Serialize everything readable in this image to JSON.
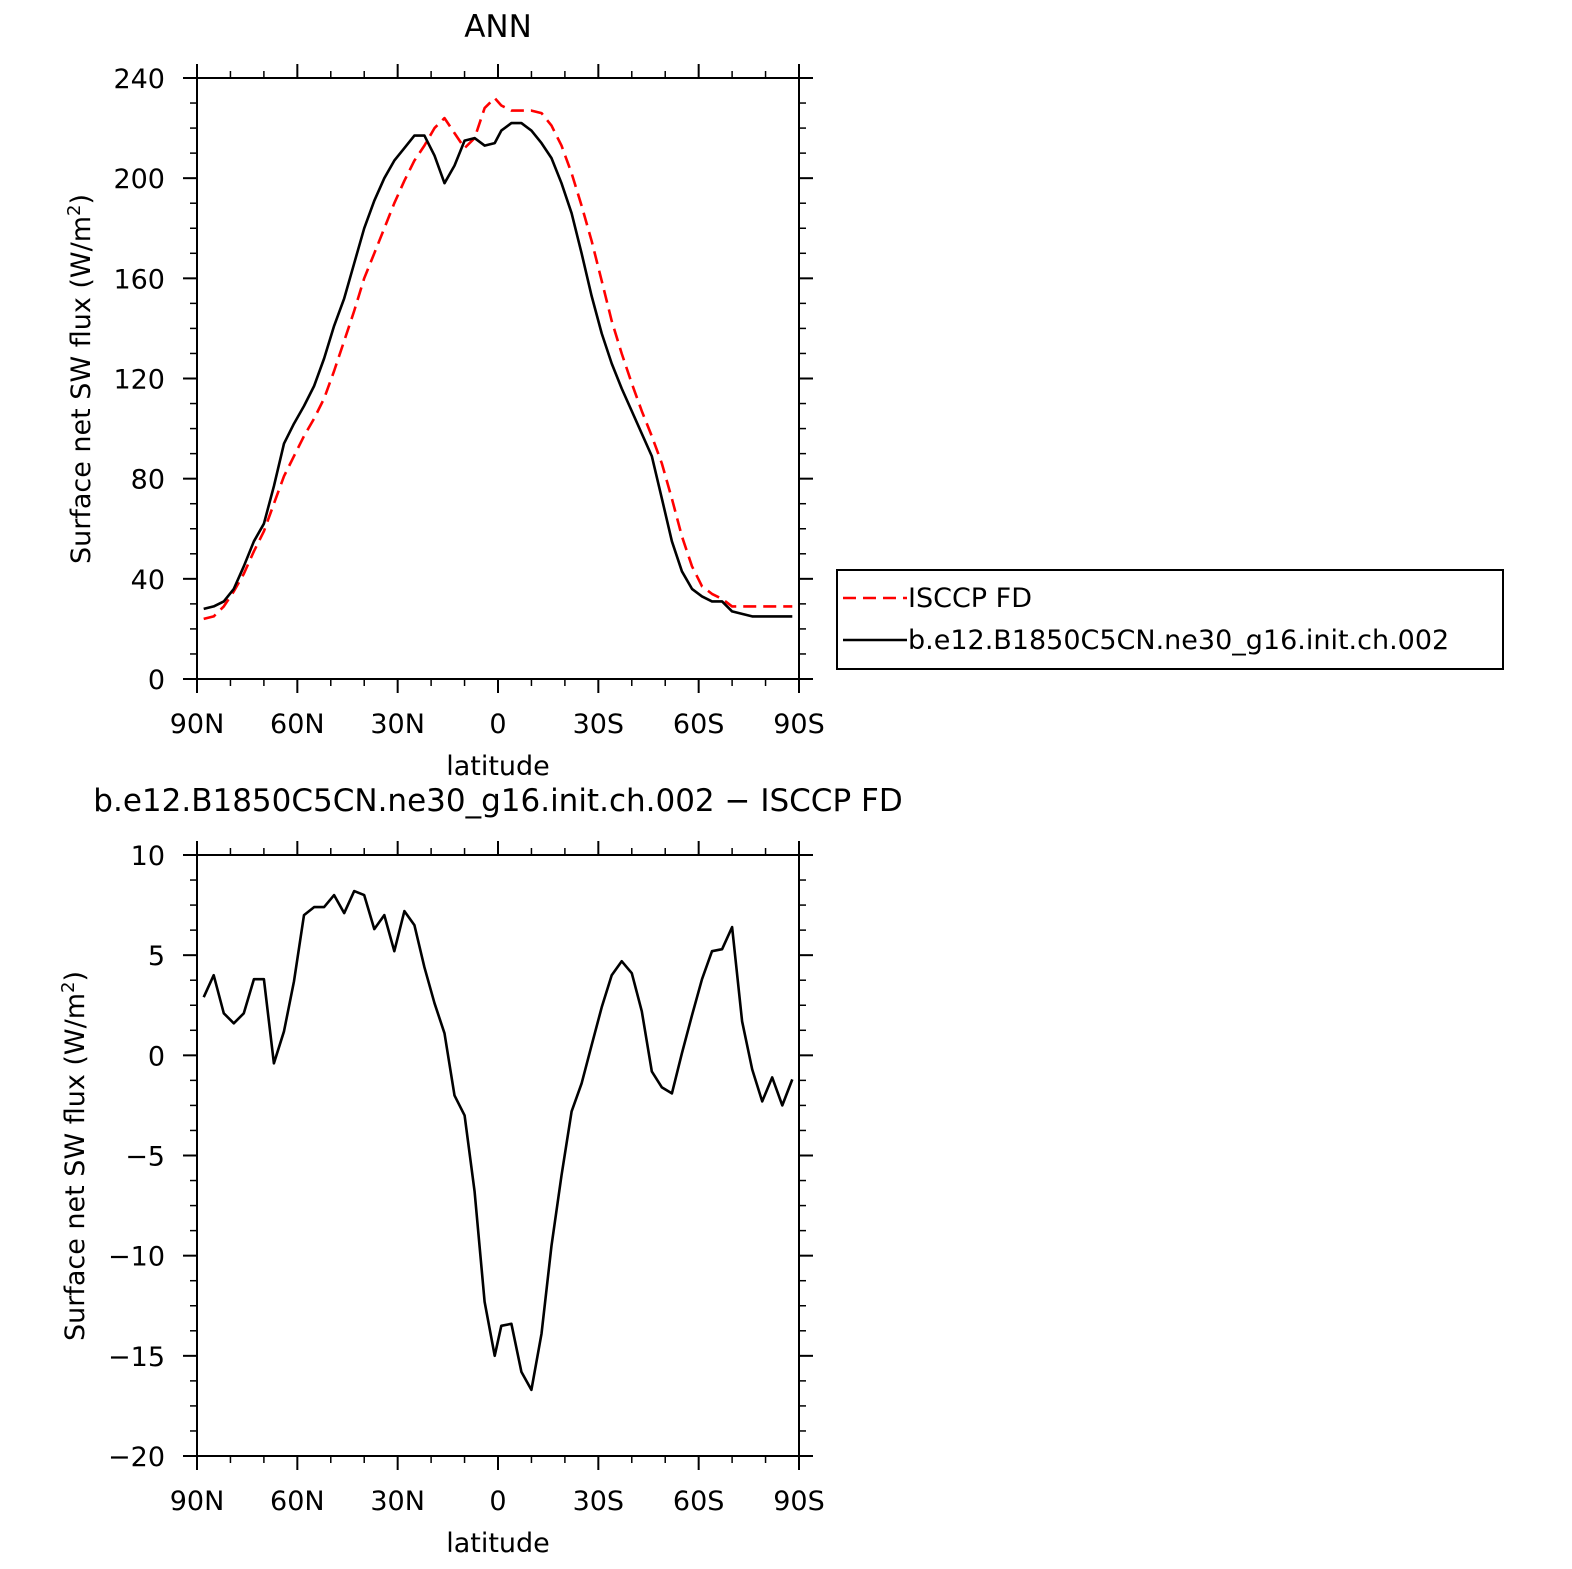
{
  "chart_data": [
    {
      "type": "line",
      "title": "ANN",
      "xlabel": "latitude",
      "ylabel_main": "Surface net SW flux (W/m",
      "ylabel_sup": "2",
      "ylabel_close": ")",
      "xticks": [
        {
          "value": 90,
          "label": "90N"
        },
        {
          "value": 60,
          "label": "60N"
        },
        {
          "value": 30,
          "label": "30N"
        },
        {
          "value": 0,
          "label": "0"
        },
        {
          "value": -30,
          "label": "30S"
        },
        {
          "value": -60,
          "label": "60S"
        },
        {
          "value": -90,
          "label": "90S"
        }
      ],
      "yticks": [
        {
          "value": 0,
          "label": "0"
        },
        {
          "value": 40,
          "label": "40"
        },
        {
          "value": 80,
          "label": "80"
        },
        {
          "value": 120,
          "label": "120"
        },
        {
          "value": 160,
          "label": "160"
        },
        {
          "value": 200,
          "label": "200"
        },
        {
          "value": 240,
          "label": "240"
        }
      ],
      "xlim": [
        90,
        -90
      ],
      "ylim": [
        0,
        240
      ],
      "series": [
        {
          "name": "ISCCP FD",
          "color": "#ff0000",
          "dash": "dashed",
          "x": [
            88,
            85,
            82,
            79,
            76,
            73,
            70,
            67,
            64,
            61,
            58,
            55,
            52,
            49,
            46,
            43,
            40,
            37,
            34,
            31,
            28,
            25,
            22,
            19,
            16,
            13,
            10,
            7,
            4,
            1,
            -1,
            -4,
            -7,
            -10,
            -13,
            -16,
            -19,
            -22,
            -25,
            -28,
            -31,
            -34,
            -37,
            -40,
            -43,
            -46,
            -49,
            -52,
            -55,
            -58,
            -61,
            -64,
            -67,
            -70,
            -73,
            -76,
            -79,
            -82,
            -85,
            -88
          ],
          "y": [
            24,
            25,
            29,
            35,
            42,
            51,
            59,
            70,
            81,
            89,
            97,
            104,
            112,
            123,
            135,
            147,
            160,
            170,
            180,
            190,
            199,
            207,
            213,
            220,
            224,
            218,
            212,
            216,
            228,
            232,
            229,
            227,
            227,
            227,
            226,
            221,
            213,
            202,
            189,
            175,
            159,
            143,
            130,
            118,
            107,
            97,
            86,
            72,
            57,
            45,
            37,
            34,
            32,
            29,
            29,
            29,
            29,
            29,
            29,
            29
          ]
        },
        {
          "name": "b.e12.B1850C5CN.ne30_g16.init.ch.002",
          "color": "#000000",
          "dash": "solid",
          "x": [
            88,
            85,
            82,
            79,
            76,
            73,
            70,
            67,
            64,
            61,
            58,
            55,
            52,
            49,
            46,
            43,
            40,
            37,
            34,
            31,
            28,
            25,
            22,
            19,
            16,
            13,
            10,
            7,
            4,
            1,
            -1,
            -4,
            -7,
            -10,
            -13,
            -16,
            -19,
            -22,
            -25,
            -28,
            -31,
            -34,
            -37,
            -40,
            -43,
            -46,
            -49,
            -52,
            -55,
            -58,
            -61,
            -64,
            -67,
            -70,
            -73,
            -76,
            -79,
            -82,
            -85,
            -88
          ],
          "y": [
            28,
            29,
            31,
            36,
            45,
            55,
            62,
            77,
            94,
            102,
            109,
            117,
            128,
            141,
            152,
            166,
            180,
            191,
            200,
            207,
            212,
            217,
            217,
            209,
            198,
            205,
            215,
            216,
            213,
            214,
            219,
            222,
            222,
            219,
            214,
            208,
            198,
            186,
            170,
            153,
            138,
            126,
            116,
            107,
            98,
            89,
            72,
            55,
            43,
            36,
            33,
            31,
            31,
            27,
            26,
            25,
            25,
            25,
            25,
            25
          ]
        }
      ],
      "legend": {
        "placement": "right",
        "entries": [
          "ISCCP FD",
          "b.e12.B1850C5CN.ne30_g16.init.ch.002"
        ]
      }
    },
    {
      "type": "line",
      "title": "b.e12.B1850C5CN.ne30_g16.init.ch.002 − ISCCP FD",
      "xlabel": "latitude",
      "ylabel_main": "Surface net SW flux (W/m",
      "ylabel_sup": "2",
      "ylabel_close": ")",
      "xticks": [
        {
          "value": 90,
          "label": "90N"
        },
        {
          "value": 60,
          "label": "60N"
        },
        {
          "value": 30,
          "label": "30N"
        },
        {
          "value": 0,
          "label": "0"
        },
        {
          "value": -30,
          "label": "30S"
        },
        {
          "value": -60,
          "label": "60S"
        },
        {
          "value": -90,
          "label": "90S"
        }
      ],
      "yticks": [
        {
          "value": -20,
          "label": "−20"
        },
        {
          "value": -15,
          "label": "−15"
        },
        {
          "value": -10,
          "label": "−10"
        },
        {
          "value": -5,
          "label": "−5"
        },
        {
          "value": 0,
          "label": "0"
        },
        {
          "value": 5,
          "label": "5"
        },
        {
          "value": 10,
          "label": "10"
        }
      ],
      "xlim": [
        90,
        -90
      ],
      "ylim": [
        -20,
        10
      ],
      "series": [
        {
          "color": "#000000",
          "dash": "solid",
          "x": [
            88,
            85,
            82,
            79,
            76,
            73,
            70,
            67,
            64,
            61,
            58,
            55,
            52,
            49,
            46,
            43,
            40,
            37,
            34,
            31,
            28,
            25,
            22,
            19,
            16,
            13,
            10,
            7,
            4,
            1,
            -1,
            -4,
            -7,
            -10,
            -13,
            -16,
            -19,
            -22,
            -25,
            -28,
            -31,
            -34,
            -37,
            -40,
            -43,
            -46,
            -49,
            -52,
            -55,
            -58,
            -61,
            -64,
            -67,
            -70,
            -73,
            -76,
            -79,
            -82,
            -85,
            -88
          ],
          "y": [
            2.9,
            4.0,
            2.1,
            1.6,
            2.1,
            3.8,
            3.8,
            -0.4,
            1.2,
            3.7,
            7.0,
            7.4,
            7.4,
            8.0,
            7.1,
            8.2,
            8.0,
            6.3,
            7.0,
            5.2,
            7.2,
            6.5,
            4.4,
            2.6,
            1.1,
            -2.0,
            -3.0,
            -6.8,
            -12.3,
            -15.0,
            -13.5,
            -13.4,
            -15.8,
            -16.7,
            -13.9,
            -9.5,
            -6.0,
            -2.8,
            -1.4,
            0.5,
            2.4,
            4.0,
            4.7,
            4.1,
            2.2,
            -0.8,
            -1.6,
            -1.9,
            0.1,
            2.0,
            3.8,
            5.2,
            5.3,
            6.4,
            1.7,
            -0.7,
            -2.3,
            -1.1,
            -2.5,
            -1.2
          ]
        }
      ]
    }
  ]
}
